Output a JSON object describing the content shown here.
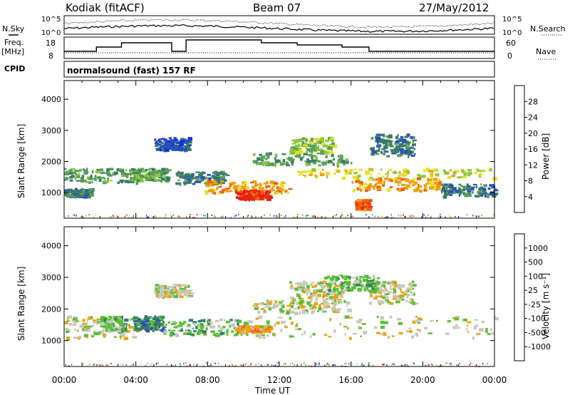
{
  "header": {
    "station": "Kodiak (fitACF)",
    "beam": "Beam 07",
    "date": "27/May/2012"
  },
  "summary_panel": {
    "left_label_1": "N.Sky",
    "left_label_2": "Freq.",
    "left_label_3": "[MHz]",
    "left_label_4": "CPID",
    "right_label_1": "N.Search",
    "right_label_2": "Nave",
    "nsky_ticks": [
      "10^5",
      "10^0"
    ],
    "freq_ticks": [
      "18",
      "8"
    ],
    "nave_ticks": [
      "60",
      "0"
    ],
    "cpid_text": "normalsound (fast) 157 RF"
  },
  "colors": {
    "power_scale": [
      "#1030e0",
      "#2a50b8",
      "#3a7a68",
      "#58a058",
      "#8cc83c",
      "#e8e020",
      "#f0a010",
      "#f06010",
      "#e82010"
    ],
    "velocity_scale": [
      "#1030e0",
      "#2a50b8",
      "#3a7a68",
      "#58c030",
      "#c8c8c0",
      "#f0a010",
      "#f06010",
      "#e82010"
    ]
  },
  "chart_data": [
    {
      "type": "heatmap",
      "title": "Power",
      "ylabel": "Slant Range [km]",
      "xlabel": "Time UT",
      "x_ticks": [
        "00:00",
        "04:00",
        "08:00",
        "12:00",
        "16:00",
        "20:00",
        "00:00"
      ],
      "xlim": [
        0,
        24
      ],
      "ylim": [
        180,
        4600
      ],
      "y_ticks": [
        "1000",
        "2000",
        "3000",
        "4000"
      ],
      "colorbar_label": "Power [dB]",
      "colorbar_ticks": [
        "28",
        "24",
        "20",
        "16",
        "12",
        "8",
        "4"
      ],
      "bands": [
        {
          "t0": 0.0,
          "t1": 4.2,
          "r0": 1350,
          "r1": 1800,
          "lvl": 3
        },
        {
          "t0": 0.0,
          "t1": 1.5,
          "r0": 900,
          "r1": 1150,
          "lvl": 2
        },
        {
          "t0": 3.6,
          "t1": 5.8,
          "r0": 1400,
          "r1": 1800,
          "lvl": 3
        },
        {
          "t0": 5.0,
          "t1": 7.0,
          "r0": 2400,
          "r1": 2800,
          "lvl": 1
        },
        {
          "t0": 6.2,
          "t1": 9.0,
          "r0": 1300,
          "r1": 1700,
          "lvl": 2
        },
        {
          "t0": 7.8,
          "t1": 12.5,
          "r0": 1000,
          "r1": 1400,
          "lvl": 6
        },
        {
          "t0": 9.5,
          "t1": 11.5,
          "r0": 800,
          "r1": 1100,
          "lvl": 8
        },
        {
          "t0": 10.5,
          "t1": 16.0,
          "r0": 1900,
          "r1": 2300,
          "lvl": 3
        },
        {
          "t0": 12.5,
          "t1": 15.0,
          "r0": 2300,
          "r1": 2800,
          "lvl": 4
        },
        {
          "t0": 13.0,
          "t1": 24.0,
          "r0": 1500,
          "r1": 1800,
          "lvl": 5
        },
        {
          "t0": 16.0,
          "t1": 21.0,
          "r0": 1100,
          "r1": 1500,
          "lvl": 6
        },
        {
          "t0": 16.2,
          "t1": 17.0,
          "r0": 500,
          "r1": 800,
          "lvl": 7
        },
        {
          "t0": 17.0,
          "t1": 19.5,
          "r0": 2200,
          "r1": 2900,
          "lvl": 2
        },
        {
          "t0": 21.0,
          "t1": 24.0,
          "r0": 900,
          "r1": 1300,
          "lvl": 2
        }
      ]
    },
    {
      "type": "heatmap",
      "title": "Velocity",
      "ylabel": "Slant Range [km]",
      "xlabel": "Time UT",
      "x_ticks": [
        "00:00",
        "04:00",
        "08:00",
        "12:00",
        "16:00",
        "20:00",
        "00:00"
      ],
      "xlim": [
        0,
        24
      ],
      "ylim": [
        180,
        4600
      ],
      "y_ticks": [
        "1000",
        "2000",
        "3000",
        "4000"
      ],
      "colorbar_label": "Velocity [m s⁻¹]",
      "colorbar_ticks": [
        "1000",
        "500",
        "100",
        "25",
        "-25",
        "-100",
        "-500",
        "-1000"
      ],
      "bands": [
        {
          "t0": 0.0,
          "t1": 4.2,
          "r0": 1100,
          "r1": 1800,
          "lvl": 4
        },
        {
          "t0": 2.0,
          "t1": 3.4,
          "r0": 1300,
          "r1": 1800,
          "lvl": 3
        },
        {
          "t0": 3.8,
          "t1": 5.5,
          "r0": 1350,
          "r1": 1800,
          "lvl": 2
        },
        {
          "t0": 5.5,
          "t1": 10.5,
          "r0": 1200,
          "r1": 1700,
          "lvl": 3
        },
        {
          "t0": 9.5,
          "t1": 11.5,
          "r0": 1300,
          "r1": 1500,
          "lvl": 5
        },
        {
          "t0": 5.0,
          "t1": 7.0,
          "r0": 2400,
          "r1": 2800,
          "lvl": 4
        },
        {
          "t0": 10.5,
          "t1": 16.0,
          "r0": 1900,
          "r1": 2300,
          "lvl": 4
        },
        {
          "t0": 12.5,
          "t1": 15.5,
          "r0": 2300,
          "r1": 2900,
          "lvl": 4
        },
        {
          "t0": 10.5,
          "t1": 24.0,
          "r0": 1100,
          "r1": 1800,
          "lvl": 4
        },
        {
          "t0": 17.0,
          "t1": 19.5,
          "r0": 2200,
          "r1": 2900,
          "lvl": 4
        },
        {
          "t0": 14.5,
          "t1": 17.5,
          "r0": 2600,
          "r1": 3100,
          "lvl": 3
        }
      ]
    }
  ]
}
